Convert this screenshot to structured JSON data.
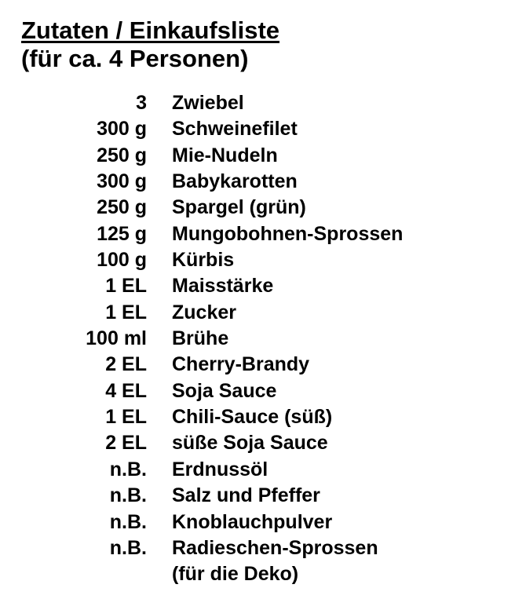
{
  "title": "Zutaten / Einkaufsliste",
  "subtitle": "(für ca. 4 Personen)",
  "items": [
    {
      "qty": "3",
      "name": "Zwiebel"
    },
    {
      "qty": "300 g",
      "name": "Schweinefilet"
    },
    {
      "qty": "250 g",
      "name": "Mie-Nudeln"
    },
    {
      "qty": "300 g",
      "name": "Babykarotten"
    },
    {
      "qty": "250 g",
      "name": "Spargel (grün)"
    },
    {
      "qty": "125 g",
      "name": "Mungobohnen-Sprossen"
    },
    {
      "qty": "100 g",
      "name": "Kürbis"
    },
    {
      "qty": "1 EL",
      "name": "Maisstärke"
    },
    {
      "qty": "1 EL",
      "name": "Zucker"
    },
    {
      "qty": "100 ml",
      "name": "Brühe"
    },
    {
      "qty": "2 EL",
      "name": "Cherry-Brandy"
    },
    {
      "qty": "4 EL",
      "name": "Soja Sauce"
    },
    {
      "qty": "1 EL",
      "name": "Chili-Sauce (süß)"
    },
    {
      "qty": "2 EL",
      "name": "süße Soja Sauce"
    },
    {
      "qty": "n.B.",
      "name": "Erdnussöl"
    },
    {
      "qty": "n.B.",
      "name": "Salz und Pfeffer"
    },
    {
      "qty": "n.B.",
      "name": "Knoblauchpulver"
    },
    {
      "qty": "n.B.",
      "name": "Radieschen-Sprossen"
    },
    {
      "qty": "",
      "name": "(für die Deko)"
    }
  ]
}
